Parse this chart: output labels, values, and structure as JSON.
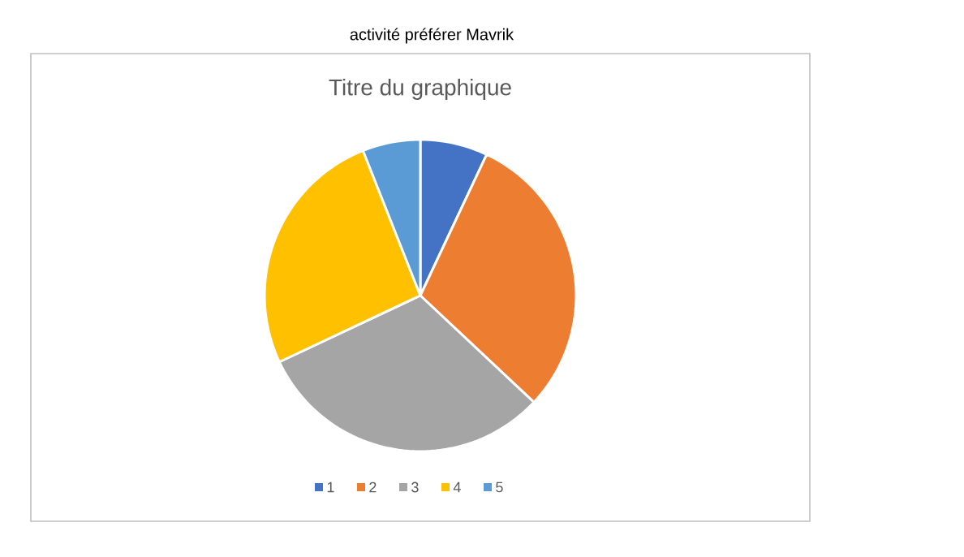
{
  "chart_data": {
    "type": "pie",
    "title": "Titre du graphique",
    "annotations": [
      "activité préférer Mavrik"
    ],
    "categories": [
      "1",
      "2",
      "3",
      "4",
      "5"
    ],
    "values": [
      7,
      30,
      31,
      26,
      6
    ],
    "colors": [
      "#4472c4",
      "#ed7d31",
      "#a5a5a5",
      "#ffc000",
      "#5b9bd5"
    ],
    "legend": "bottom"
  }
}
